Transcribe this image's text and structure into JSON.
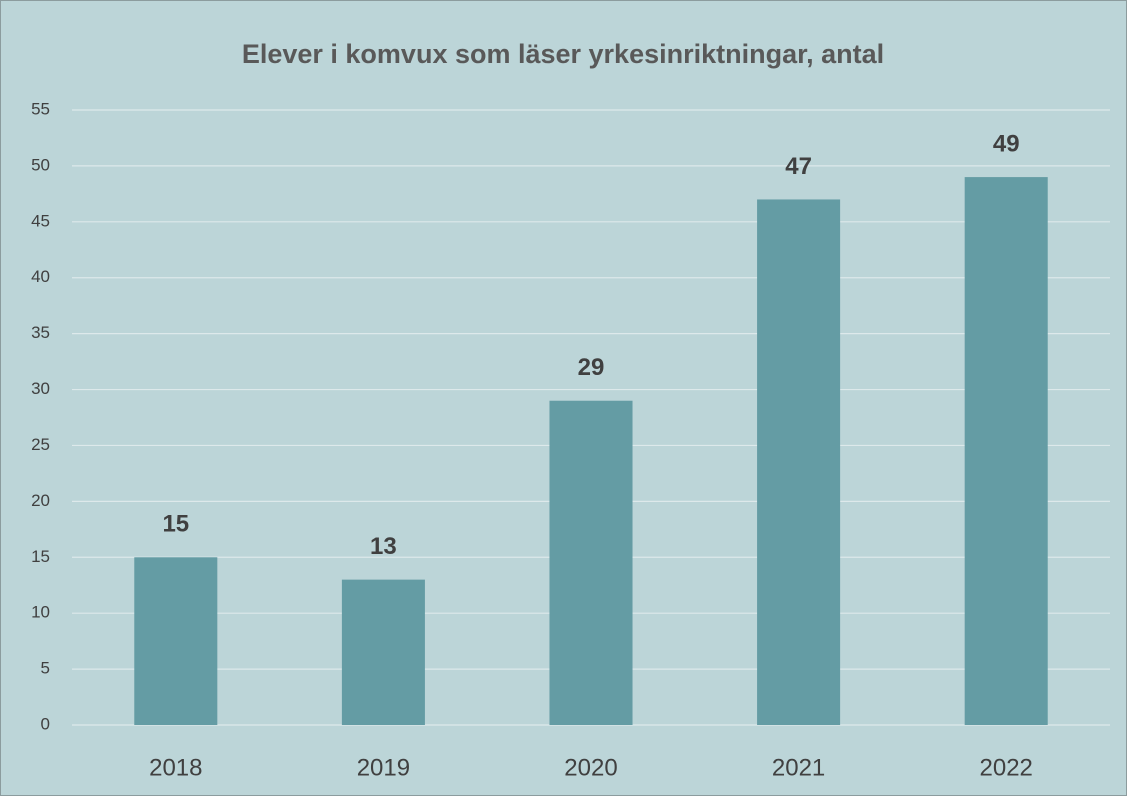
{
  "chart_data": {
    "type": "bar",
    "title": "Elever i komvux som läser yrkesinriktningar, antal",
    "categories": [
      "2018",
      "2019",
      "2020",
      "2021",
      "2022"
    ],
    "values": [
      15,
      13,
      29,
      47,
      49
    ],
    "color": "#649ca4",
    "ylim": [
      0,
      55
    ],
    "yticks": [
      0,
      5,
      10,
      15,
      20,
      25,
      30,
      35,
      40,
      45,
      50,
      55
    ],
    "grid": true,
    "data_labels": true
  }
}
